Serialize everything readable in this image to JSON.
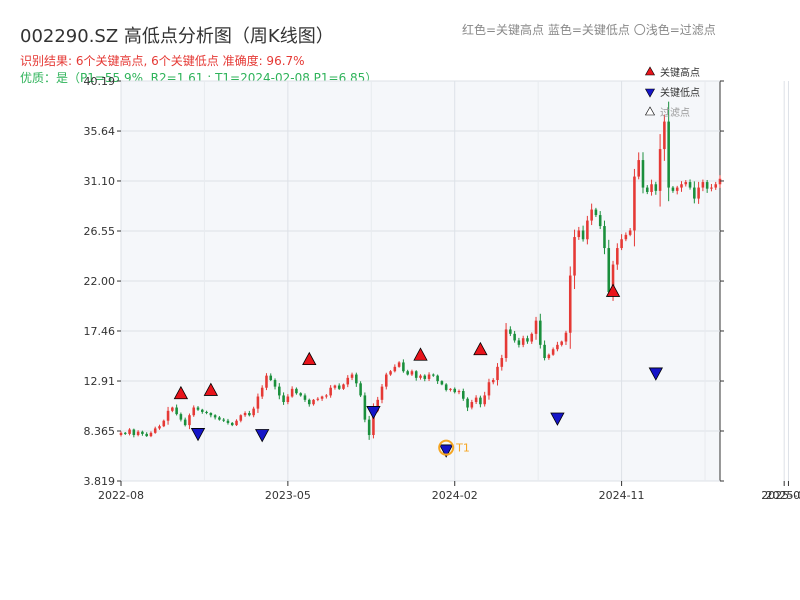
{
  "chart_data": {
    "type": "candlestick",
    "title": "002290.SZ 高低点分析图（周K线图）",
    "legend_text": "红色=关键高点    蓝色=关键低点  〇浅色=过滤点",
    "info_line1": "识别结果: 6个关键高点, 6个关键低点   准确度: 96.7%",
    "info_line2": "优质：是（P1=55.9%, R2=1.61 ; T1=2024-02-08 P1=6.85）",
    "y_ticks": [
      "40.19",
      "35.64",
      "31.10",
      "26.55",
      "22.00",
      "17.46",
      "12.91",
      "8.365",
      "3.819"
    ],
    "y_tick_values": [
      40.19,
      35.64,
      31.1,
      26.55,
      22.0,
      17.46,
      12.91,
      8.365,
      3.819
    ],
    "ylim": [
      3.819,
      40.19
    ],
    "x_ticks": [
      "2022-08",
      "2023-05",
      "2024-02",
      "2024-11",
      "2025-07",
      "2025-08"
    ],
    "x_tick_positions_weeks": [
      0,
      39,
      78,
      117,
      155,
      156
    ],
    "legend": {
      "high": "关键高点",
      "low": "关键低点",
      "filtered": "过滤点",
      "position": "top-right"
    },
    "grid": true,
    "colors": {
      "up": "#e53935",
      "down": "#1a8f3c",
      "high_marker": "#e8141b",
      "low_marker": "#1515c8",
      "t1": "#f5a623"
    },
    "closes": [
      8.2,
      8.1,
      8.5,
      8.0,
      8.3,
      8.1,
      7.9,
      8.2,
      8.6,
      8.8,
      9.3,
      10.2,
      10.5,
      9.9,
      9.4,
      8.9,
      9.8,
      10.5,
      10.3,
      10.1,
      10.0,
      9.8,
      9.6,
      9.4,
      9.3,
      9.1,
      8.9,
      9.3,
      9.8,
      10.0,
      9.8,
      10.4,
      11.5,
      12.3,
      13.4,
      13.0,
      12.4,
      11.6,
      11.0,
      11.5,
      12.2,
      11.8,
      11.6,
      11.2,
      10.8,
      11.2,
      11.3,
      11.5,
      11.6,
      12.3,
      12.5,
      12.2,
      12.6,
      13.2,
      13.5,
      12.7,
      11.6,
      9.4,
      8.0,
      10.2,
      11.2,
      12.4,
      13.5,
      13.8,
      14.2,
      14.6,
      13.8,
      13.5,
      13.8,
      13.2,
      13.4,
      13.1,
      13.5,
      13.4,
      12.9,
      12.6,
      12.1,
      12.2,
      11.9,
      12.0,
      11.3,
      10.5,
      11.0,
      11.4,
      10.8,
      11.6,
      12.8,
      13.0,
      14.2,
      15.0,
      17.6,
      17.2,
      16.6,
      16.2,
      16.8,
      16.5,
      17.2,
      18.4,
      16.2,
      15.0,
      15.3,
      15.8,
      16.2,
      16.5,
      17.3,
      22.5,
      26.0,
      26.6,
      25.8,
      27.5,
      28.5,
      28.0,
      27.0,
      25.0,
      21.0,
      23.5,
      25.0,
      25.8,
      26.2,
      26.6,
      31.5,
      33.0,
      30.5,
      30.1,
      30.8,
      30.2,
      34.0,
      36.5,
      30.5,
      30.2,
      30.5,
      30.8,
      31.0,
      30.5,
      29.5,
      30.5,
      31.0,
      30.4,
      30.5,
      30.8,
      31.3
    ],
    "high_points": [
      {
        "week": 14,
        "price": 11.3
      },
      {
        "week": 21,
        "price": 11.6
      },
      {
        "week": 44,
        "price": 14.4
      },
      {
        "week": 70,
        "price": 14.8
      },
      {
        "week": 84,
        "price": 15.3
      },
      {
        "week": 115,
        "price": 20.6
      }
    ],
    "low_points": [
      {
        "week": 18,
        "price": 8.6
      },
      {
        "week": 33,
        "price": 8.5
      },
      {
        "week": 59,
        "price": 10.6
      },
      {
        "week": 76,
        "price": 7.1
      },
      {
        "week": 102,
        "price": 10.0
      },
      {
        "week": 125,
        "price": 14.1
      }
    ],
    "t1_point": {
      "week": 76,
      "price": 6.85,
      "label": "T1"
    }
  }
}
